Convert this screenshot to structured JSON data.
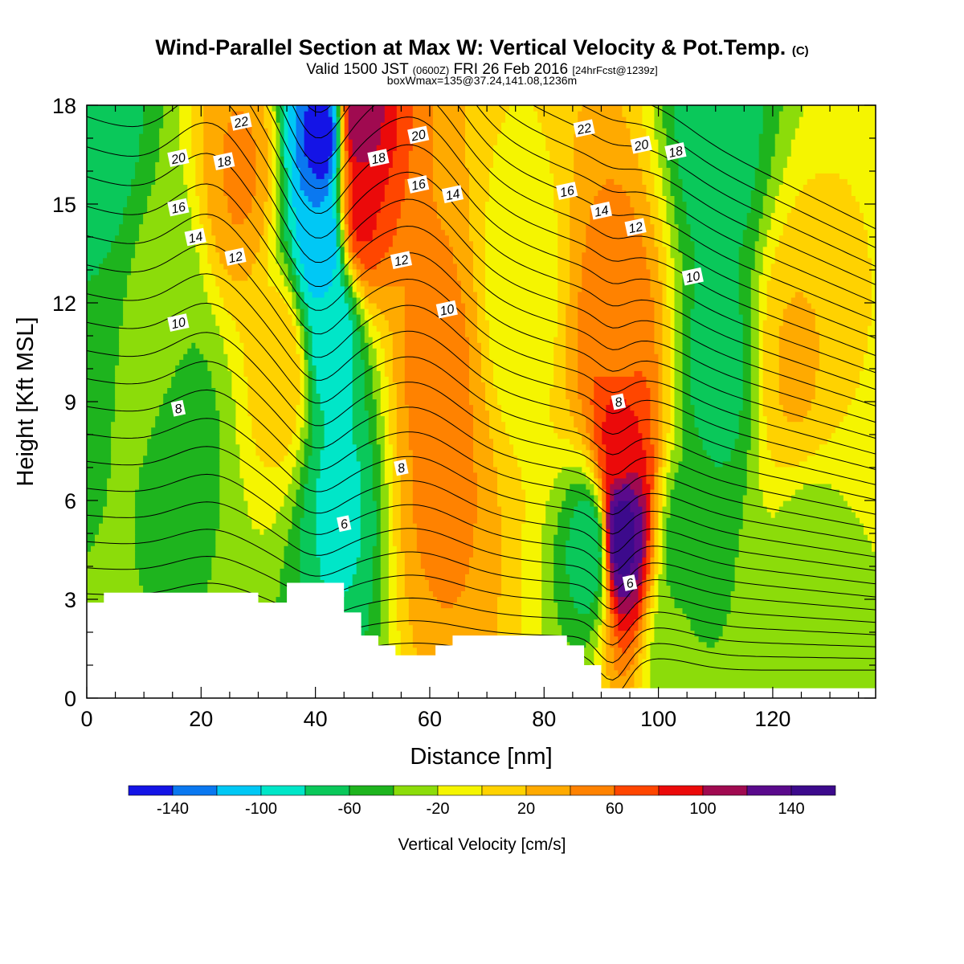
{
  "header": {
    "title": "Wind-Parallel Section at Max W: Vertical Velocity & Pot.Temp.",
    "title_tag": "(C)",
    "valid_prefix": "Valid 1500 JST",
    "valid_utc": "(0600Z)",
    "valid_date": "FRI 26 Feb 2016",
    "forecast": "[24hrFcst@1239z]",
    "boxinfo": "boxWmax=135@37.24,141.08,1236m"
  },
  "chart_data": {
    "type": "heatmap",
    "xlabel": "Distance [nm]",
    "ylabel": "Height [Kft MSL]",
    "xlim": [
      0,
      138
    ],
    "ylim": [
      0,
      18
    ],
    "x_ticks": [
      0,
      20,
      40,
      60,
      80,
      100,
      120
    ],
    "y_ticks": [
      0,
      3,
      6,
      9,
      12,
      15,
      18
    ],
    "x_tick_labels": [
      "0",
      "20",
      "40",
      "60",
      "80",
      "100",
      "120"
    ],
    "y_tick_labels": [
      "0",
      "3",
      "6",
      "9",
      "12",
      "15",
      "18"
    ],
    "grid": false,
    "colorbar": {
      "label": "Vertical Velocity [cm/s]",
      "boundaries": [
        -160,
        -140,
        -120,
        -100,
        -80,
        -60,
        -40,
        -20,
        0,
        20,
        40,
        60,
        80,
        100,
        120,
        140,
        160
      ],
      "tick_values": [
        -140,
        -100,
        -60,
        -20,
        20,
        60,
        100,
        140
      ],
      "tick_labels": [
        "-140",
        "-100",
        "-60",
        "-20",
        "20",
        "60",
        "100",
        "140"
      ],
      "colors": [
        "#1414e6",
        "#0a78f0",
        "#00c8f5",
        "#00e6c8",
        "#0ac85a",
        "#1eb41e",
        "#8cdc0a",
        "#f5f500",
        "#ffd200",
        "#ffaa00",
        "#ff8200",
        "#ff4600",
        "#eb0a0a",
        "#a00a50",
        "#5a0a8c",
        "#3c0a8c"
      ]
    },
    "velocity_features": [
      {
        "x": 41,
        "z": 17,
        "value": -150
      },
      {
        "x": 41,
        "z": 14,
        "value": -120
      },
      {
        "x": 43,
        "z": 11,
        "value": -95
      },
      {
        "x": 44,
        "z": 6,
        "value": -85
      },
      {
        "x": 48,
        "z": 17.5,
        "value": 115
      },
      {
        "x": 48,
        "z": 15,
        "value": 85
      },
      {
        "x": 61,
        "z": 10,
        "value": 50
      },
      {
        "x": 62,
        "z": 6.5,
        "value": 45
      },
      {
        "x": 93.5,
        "z": 5,
        "value": 150
      },
      {
        "x": 93,
        "z": 8,
        "value": 85
      },
      {
        "x": 93,
        "z": 11,
        "value": 50
      },
      {
        "x": 88,
        "z": 4.5,
        "value": -75
      },
      {
        "x": 110,
        "z": 17,
        "value": -75
      },
      {
        "x": 110,
        "z": 10,
        "value": -70
      },
      {
        "x": 3,
        "z": 17.5,
        "value": -70
      },
      {
        "x": 27,
        "z": 16,
        "value": 42
      },
      {
        "x": 13,
        "z": 12,
        "value": -35
      },
      {
        "x": 18,
        "z": 8,
        "value": -45
      },
      {
        "x": 34,
        "z": 10,
        "value": 15
      },
      {
        "x": 105,
        "z": 4.5,
        "value": -55
      },
      {
        "x": 103,
        "z": 1.2,
        "value": -35
      },
      {
        "x": 126,
        "z": 4,
        "value": -30
      },
      {
        "x": 124,
        "z": 10,
        "value": 22
      },
      {
        "x": 76,
        "z": 12,
        "value": -15
      }
    ],
    "theta_contours": [
      {
        "label": "6",
        "label_at": [
          45,
          5.3
        ]
      },
      {
        "label": "8",
        "label_at": [
          16,
          8.8
        ]
      },
      {
        "label": "8",
        "label_at": [
          55,
          7
        ]
      },
      {
        "label": "8",
        "label_at": [
          93,
          9
        ]
      },
      {
        "label": "10",
        "label_at": [
          16,
          11.4
        ]
      },
      {
        "label": "10",
        "label_at": [
          63,
          11.8
        ]
      },
      {
        "label": "10",
        "label_at": [
          106,
          12.8
        ]
      },
      {
        "label": "12",
        "label_at": [
          26,
          13.4
        ]
      },
      {
        "label": "12",
        "label_at": [
          55,
          13.3
        ]
      },
      {
        "label": "12",
        "label_at": [
          96,
          14.3
        ]
      },
      {
        "label": "14",
        "label_at": [
          19,
          14
        ]
      },
      {
        "label": "14",
        "label_at": [
          64,
          15.3
        ]
      },
      {
        "label": "14",
        "label_at": [
          90,
          14.8
        ]
      },
      {
        "label": "16",
        "label_at": [
          16,
          14.9
        ]
      },
      {
        "label": "16",
        "label_at": [
          58,
          15.6
        ]
      },
      {
        "label": "16",
        "label_at": [
          84,
          15.4
        ]
      },
      {
        "label": "18",
        "label_at": [
          24,
          16.3
        ]
      },
      {
        "label": "18",
        "label_at": [
          51,
          16.4
        ]
      },
      {
        "label": "18",
        "label_at": [
          103,
          16.6
        ]
      },
      {
        "label": "20",
        "label_at": [
          16,
          16.4
        ]
      },
      {
        "label": "20",
        "label_at": [
          58,
          17.1
        ]
      },
      {
        "label": "20",
        "label_at": [
          97,
          16.8
        ]
      },
      {
        "label": "22",
        "label_at": [
          27,
          17.5
        ]
      },
      {
        "label": "22",
        "label_at": [
          87,
          17.3
        ]
      },
      {
        "label": "6",
        "label_at": [
          95,
          3.5
        ]
      }
    ],
    "terrain": [
      [
        0,
        2.9
      ],
      [
        3,
        2.9
      ],
      [
        3,
        3.2
      ],
      [
        30,
        3.2
      ],
      [
        30,
        2.9
      ],
      [
        35,
        2.9
      ],
      [
        35,
        3.5
      ],
      [
        45,
        3.5
      ],
      [
        45,
        2.6
      ],
      [
        48,
        2.6
      ],
      [
        48,
        1.9
      ],
      [
        51,
        1.9
      ],
      [
        51,
        1.6
      ],
      [
        54,
        1.6
      ],
      [
        54,
        1.3
      ],
      [
        61,
        1.3
      ],
      [
        61,
        1.6
      ],
      [
        64,
        1.6
      ],
      [
        64,
        1.9
      ],
      [
        84,
        1.9
      ],
      [
        84,
        1.6
      ],
      [
        87,
        1.6
      ],
      [
        87,
        1.0
      ],
      [
        90,
        1.0
      ],
      [
        90,
        0.3
      ],
      [
        138,
        0.3
      ]
    ]
  }
}
